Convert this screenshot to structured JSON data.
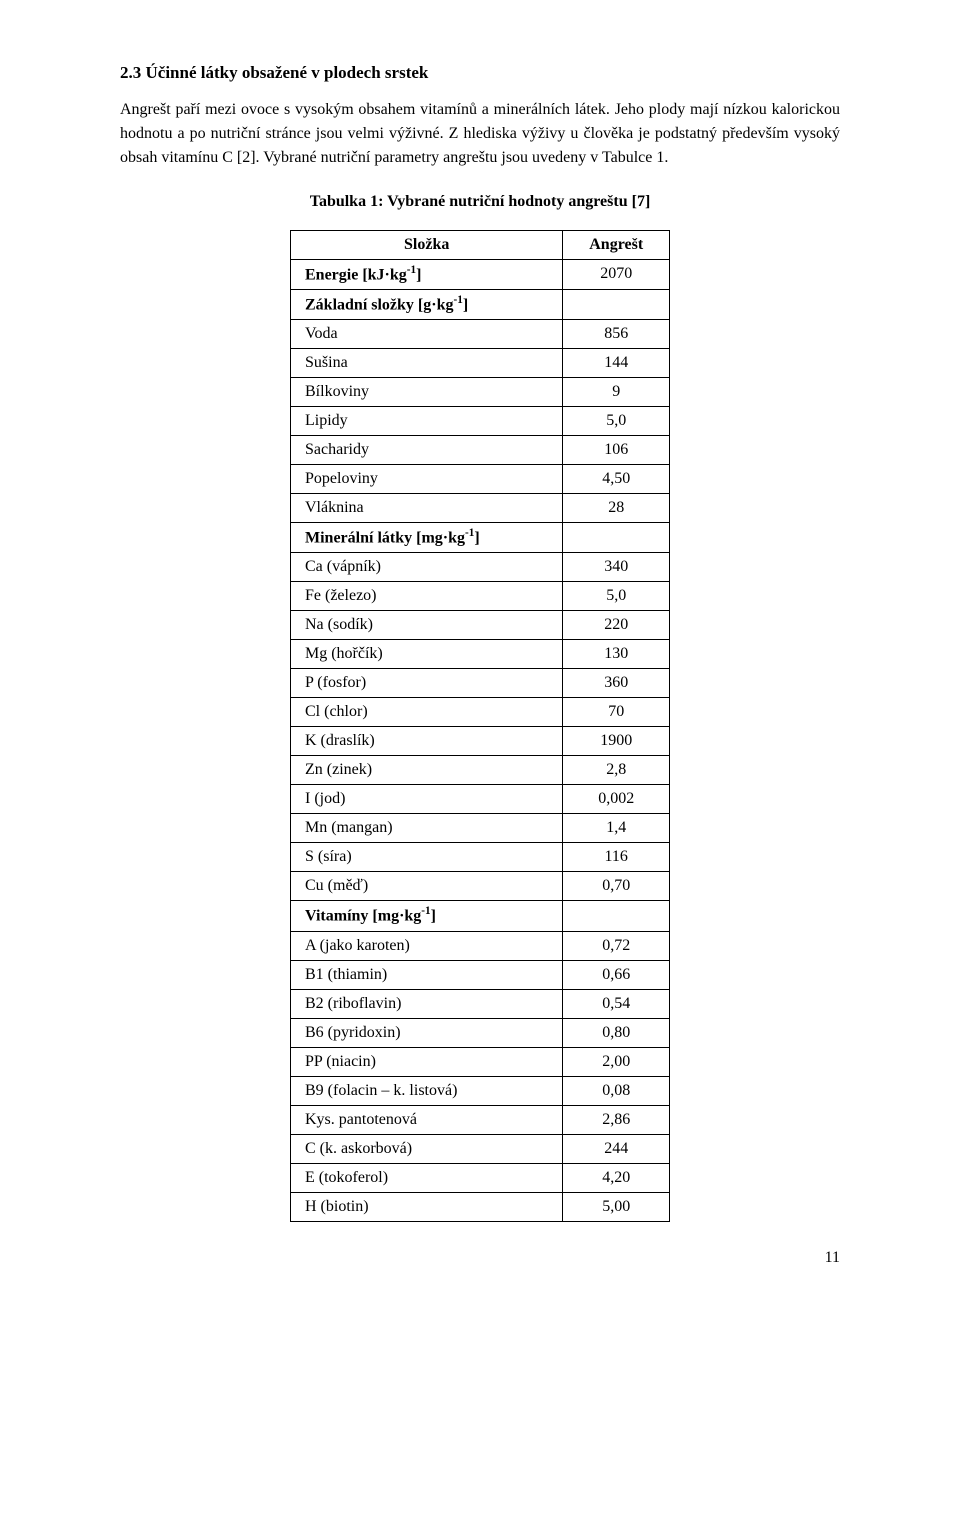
{
  "section": {
    "heading": "2.3   Účinné látky obsažené v plodech srstek",
    "paragraph": "Angrešt paří mezi ovoce s vysokým obsahem vitamínů a minerálních látek. Jeho plody mají nízkou kalorickou hodnotu a po nutriční stránce jsou velmi výživné. Z hlediska výživy u člověka je podstatný především vysoký obsah vitamínu C [2]. Vybrané nutriční parametry angreštu jsou uvedeny v Tabulce 1."
  },
  "table": {
    "caption": "Tabulka 1: Vybrané nutriční hodnoty angreštu [7]",
    "header": {
      "col1": "Složka",
      "col2": "Angrešt"
    },
    "energy": {
      "label_html": "Energie [kJ·kg<sup>-1</sup>]",
      "value": "2070"
    },
    "sections": [
      {
        "title_html": "Základní složky [g·kg<sup>-1</sup>]",
        "rows": [
          {
            "label": "Voda",
            "value": "856"
          },
          {
            "label": "Sušina",
            "value": "144"
          },
          {
            "label": "Bílkoviny",
            "value": "9"
          },
          {
            "label": "Lipidy",
            "value": "5,0"
          },
          {
            "label": "Sacharidy",
            "value": "106"
          },
          {
            "label": "Popeloviny",
            "value": "4,50"
          },
          {
            "label": "Vláknina",
            "value": "28"
          }
        ]
      },
      {
        "title_html": "Minerální látky [mg·kg<sup>-1</sup>]",
        "rows": [
          {
            "label": "Ca (vápník)",
            "value": "340"
          },
          {
            "label": "Fe (železo)",
            "value": "5,0"
          },
          {
            "label": "Na (sodík)",
            "value": "220"
          },
          {
            "label": "Mg (hořčík)",
            "value": "130"
          },
          {
            "label": "P (fosfor)",
            "value": "360"
          },
          {
            "label": "Cl (chlor)",
            "value": "70"
          },
          {
            "label": "K (draslík)",
            "value": "1900"
          },
          {
            "label": "Zn (zinek)",
            "value": "2,8"
          },
          {
            "label": "I (jod)",
            "value": "0,002"
          },
          {
            "label": "Mn (mangan)",
            "value": "1,4"
          },
          {
            "label": "S (síra)",
            "value": "116"
          },
          {
            "label": "Cu (měď)",
            "value": "0,70"
          }
        ]
      },
      {
        "title_html": "Vitamíny [mg·kg<sup>-1</sup>]",
        "rows": [
          {
            "label": "A (jako karoten)",
            "value": "0,72"
          },
          {
            "label": "B1 (thiamin)",
            "value": "0,66"
          },
          {
            "label": "B2 (riboflavin)",
            "value": "0,54"
          },
          {
            "label": "B6 (pyridoxin)",
            "value": "0,80"
          },
          {
            "label": "PP (niacin)",
            "value": "2,00"
          },
          {
            "label": "B9 (folacin – k. listová)",
            "value": "0,08"
          },
          {
            "label": "Kys. pantotenová",
            "value": "2,86"
          },
          {
            "label": "C (k. askorbová)",
            "value": "244"
          },
          {
            "label": "E (tokoferol)",
            "value": "4,20"
          },
          {
            "label": "H (biotin)",
            "value": "5,00"
          }
        ]
      }
    ]
  },
  "page_number": "11",
  "style": {
    "background": "#ffffff",
    "text_color": "#000000",
    "border_color": "#000000"
  }
}
